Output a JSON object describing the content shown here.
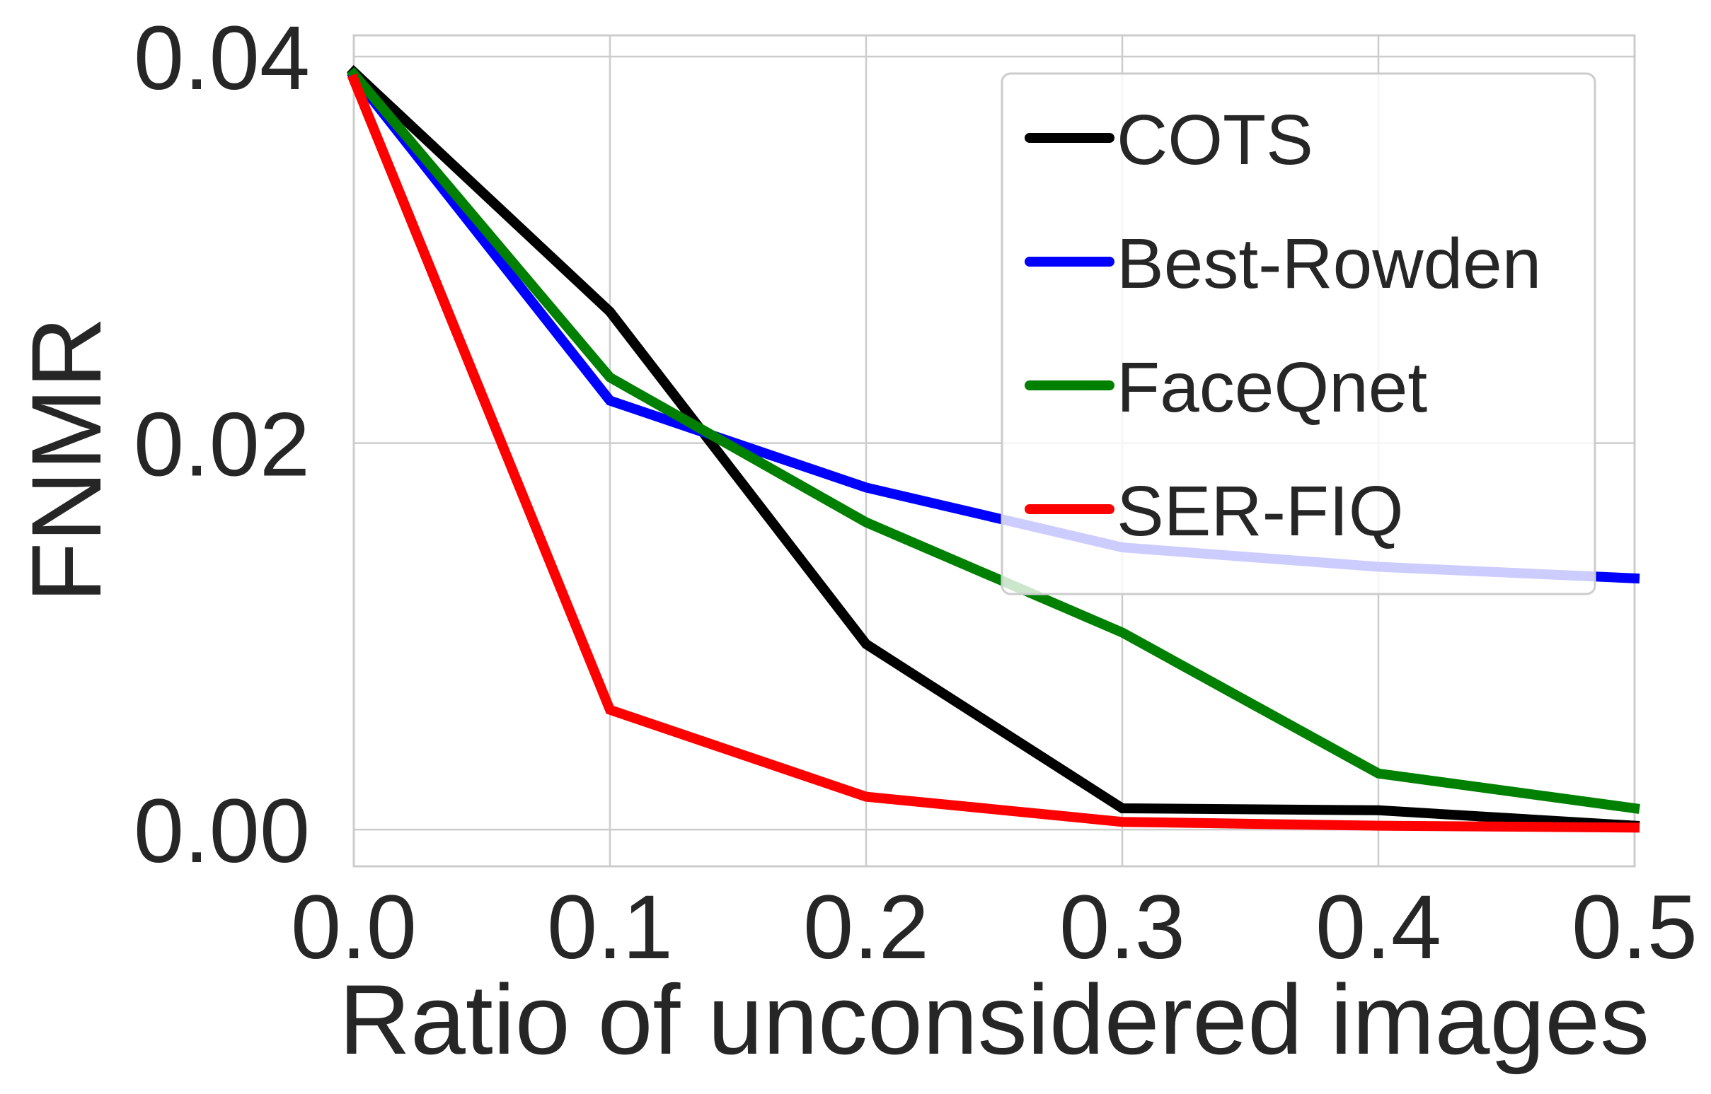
{
  "chart_data": {
    "type": "line",
    "title": "",
    "xlabel": "Ratio of unconsidered images",
    "ylabel": "FNMR",
    "x": [
      0.0,
      0.1,
      0.2,
      0.3,
      0.4,
      0.5
    ],
    "xlim": [
      0.0,
      0.5
    ],
    "ylim": [
      -0.0019,
      0.0411
    ],
    "xticks": [
      0.0,
      0.1,
      0.2,
      0.3,
      0.4,
      0.5
    ],
    "xtick_labels": [
      "0.0",
      "0.1",
      "0.2",
      "0.3",
      "0.4",
      "0.5"
    ],
    "yticks": [
      0.0,
      0.02,
      0.04
    ],
    "ytick_labels": [
      "0.00",
      "0.02",
      "0.04"
    ],
    "grid": true,
    "legend_position": "top-right",
    "series": [
      {
        "name": "COTS",
        "color": "#000000",
        "values": [
          0.0392,
          0.0268,
          0.0096,
          0.0011,
          0.001,
          0.0002
        ]
      },
      {
        "name": "Best-Rowden",
        "color": "#0000ff",
        "values": [
          0.039,
          0.0222,
          0.0177,
          0.0146,
          0.0136,
          0.013
        ]
      },
      {
        "name": "FaceQnet",
        "color": "#008000",
        "values": [
          0.0391,
          0.0234,
          0.0159,
          0.0102,
          0.0029,
          0.0011
        ]
      },
      {
        "name": "SER-FIQ",
        "color": "#ff0000",
        "values": [
          0.0388,
          0.0062,
          0.0017,
          0.0004,
          0.0002,
          0.0001
        ]
      }
    ]
  }
}
